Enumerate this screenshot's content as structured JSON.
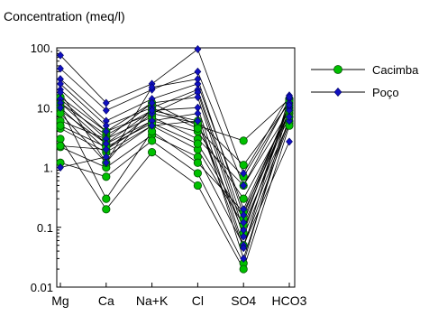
{
  "chart_data": {
    "type": "line",
    "title": "Concentration (meq/l)",
    "yscale": "log",
    "ylim": [
      0.01,
      100
    ],
    "y_ticks": [
      {
        "value": 100,
        "label": "100."
      },
      {
        "value": 10,
        "label": "10."
      },
      {
        "value": 1,
        "label": "1."
      },
      {
        "value": 0.1,
        "label": "0.1"
      },
      {
        "value": 0.01,
        "label": "0.01"
      }
    ],
    "categories": [
      "Mg",
      "Ca",
      "Na+K",
      "Cl",
      "SO4",
      "HCO3"
    ],
    "legend_position": "right",
    "series": [
      {
        "name": "Cacimba",
        "color": "#00c000",
        "marker": "circle",
        "samples": [
          [
            12,
            3.5,
            9,
            6,
            1.1,
            12
          ],
          [
            9,
            2.5,
            6,
            4,
            0.3,
            8
          ],
          [
            4.5,
            1.8,
            5,
            2,
            0.11,
            6
          ],
          [
            2.2,
            1.0,
            3.5,
            1.5,
            0.05,
            5.5
          ],
          [
            1.2,
            0.7,
            2.8,
            0.8,
            0.025,
            10
          ],
          [
            15,
            4,
            12,
            5,
            2.8,
            14
          ],
          [
            6,
            3,
            7,
            3,
            0.5,
            9
          ],
          [
            10,
            0.3,
            4,
            1.2,
            0.18,
            7
          ],
          [
            3,
            0.2,
            1.8,
            0.5,
            0.02,
            5
          ],
          [
            2.3,
            2.0,
            8,
            5.5,
            0.08,
            11
          ],
          [
            8,
            1.2,
            10,
            4.5,
            0.7,
            13
          ],
          [
            5,
            2.2,
            5.5,
            2.5,
            0.14,
            9
          ]
        ]
      },
      {
        "name": "Poço",
        "color": "#1010c0",
        "marker": "diamond",
        "samples": [
          [
            75,
            12,
            25,
            95,
            0.8,
            16
          ],
          [
            45,
            9,
            20,
            40,
            0.5,
            14
          ],
          [
            30,
            6,
            14,
            25,
            0.2,
            10
          ],
          [
            25,
            5,
            10,
            20,
            0.12,
            12
          ],
          [
            20,
            4,
            8,
            18,
            0.09,
            9
          ],
          [
            14,
            3,
            12,
            15,
            0.07,
            6
          ],
          [
            12,
            2.5,
            9,
            10,
            0.05,
            2.7
          ],
          [
            10,
            2,
            6,
            8,
            0.03,
            7
          ],
          [
            1,
            1.5,
            5,
            6,
            0.045,
            15
          ],
          [
            18,
            1.2,
            22,
            30,
            0.16,
            11
          ]
        ]
      }
    ]
  }
}
